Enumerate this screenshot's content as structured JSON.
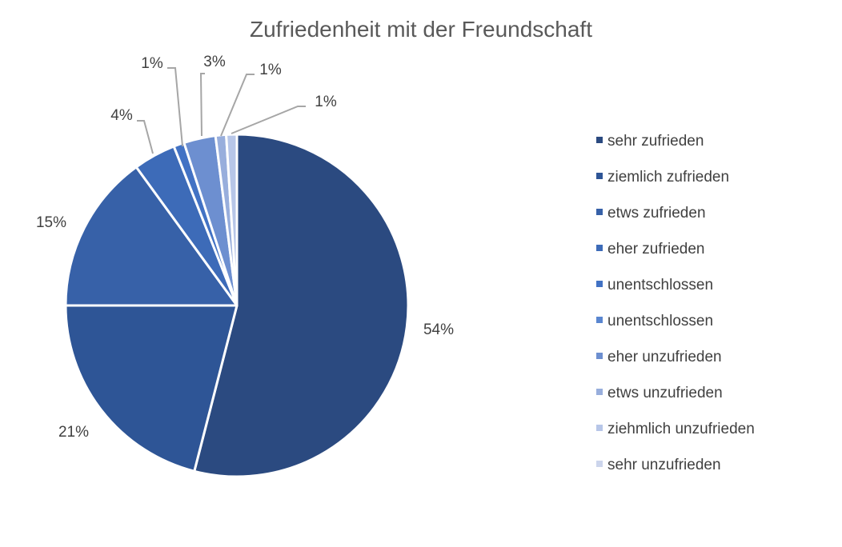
{
  "chart_data": {
    "type": "pie",
    "title": "Zufriedenheit mit der Freundschaft",
    "categories": [
      "sehr zufrieden",
      "ziemlich zufrieden",
      "etws zufrieden",
      "eher zufrieden",
      "unentschlossen",
      "unentschlossen",
      "eher unzufrieden",
      "etws unzufrieden",
      "ziehmlich unzufrieden",
      "sehr unzufrieden"
    ],
    "values": [
      54,
      21,
      15,
      4,
      1,
      0,
      3,
      1,
      1,
      0
    ],
    "data_labels": [
      "54%",
      "21%",
      "15%",
      "4%",
      "1%",
      "",
      "3%",
      "1%",
      "1%",
      ""
    ],
    "colors": [
      "#2b4a80",
      "#2e5596",
      "#3761a8",
      "#3d6bb8",
      "#4272c4",
      "#5a86d0",
      "#6d8fd0",
      "#98aedc",
      "#b7c6e8",
      "#ccd5ec"
    ],
    "legend_position": "right"
  }
}
